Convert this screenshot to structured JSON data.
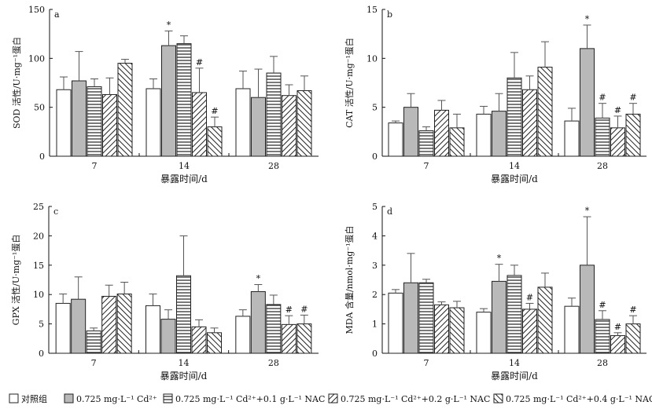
{
  "chart_data": [
    {
      "type": "bar",
      "panel_label": "a",
      "ylabel": "SOD 活性/U·mg⁻¹蛋白",
      "xlabel": "暴露时间/d",
      "ylim": [
        0,
        150
      ],
      "yticks": [
        0,
        50,
        100,
        150
      ],
      "categories": [
        "7",
        "14",
        "28"
      ],
      "series": [
        {
          "values": [
            68,
            69,
            69
          ],
          "errors": [
            13,
            10,
            18
          ],
          "marks": [
            "",
            "",
            ""
          ]
        },
        {
          "values": [
            77,
            113,
            60
          ],
          "errors": [
            30,
            15,
            29
          ],
          "marks": [
            "",
            "*",
            ""
          ]
        },
        {
          "values": [
            71,
            115,
            85
          ],
          "errors": [
            8,
            8,
            17
          ],
          "marks": [
            "",
            "",
            ""
          ]
        },
        {
          "values": [
            63,
            65,
            62
          ],
          "errors": [
            17,
            25,
            11
          ],
          "marks": [
            "",
            "#",
            ""
          ]
        },
        {
          "values": [
            95,
            30,
            67
          ],
          "errors": [
            4,
            10,
            15
          ],
          "marks": [
            "",
            "#",
            ""
          ]
        }
      ]
    },
    {
      "type": "bar",
      "panel_label": "b",
      "ylabel": "CAT 活性/U·mg⁻¹蛋白",
      "xlabel": "暴露时间/d",
      "ylim": [
        0,
        15
      ],
      "yticks": [
        0,
        5,
        10,
        15
      ],
      "categories": [
        "7",
        "14",
        "28"
      ],
      "series": [
        {
          "values": [
            3.4,
            4.3,
            3.6
          ],
          "errors": [
            0.2,
            0.8,
            1.3
          ],
          "marks": [
            "",
            "",
            ""
          ]
        },
        {
          "values": [
            5.0,
            4.6,
            11.0
          ],
          "errors": [
            1.4,
            1.8,
            2.4
          ],
          "marks": [
            "",
            "",
            "*"
          ]
        },
        {
          "values": [
            2.6,
            8.0,
            3.9
          ],
          "errors": [
            0.4,
            2.6,
            1.5
          ],
          "marks": [
            "",
            "",
            "#"
          ]
        },
        {
          "values": [
            4.7,
            6.8,
            2.9
          ],
          "errors": [
            1.0,
            1.4,
            1.2
          ],
          "marks": [
            "",
            "",
            "#"
          ]
        },
        {
          "values": [
            2.9,
            9.1,
            4.3
          ],
          "errors": [
            1.4,
            2.6,
            1.1
          ],
          "marks": [
            "",
            "",
            "#"
          ]
        }
      ]
    },
    {
      "type": "bar",
      "panel_label": "c",
      "ylabel": "GPX 活性/U·mg⁻¹蛋白",
      "xlabel": "暴露时间/d",
      "ylim": [
        0,
        25
      ],
      "yticks": [
        0,
        5,
        10,
        15,
        20,
        25
      ],
      "categories": [
        "7",
        "14",
        "28"
      ],
      "series": [
        {
          "values": [
            8.5,
            8.1,
            6.3
          ],
          "errors": [
            1.6,
            2.0,
            1.1
          ],
          "marks": [
            "",
            "",
            ""
          ]
        },
        {
          "values": [
            9.2,
            5.8,
            10.5
          ],
          "errors": [
            3.8,
            1.6,
            1.2
          ],
          "marks": [
            "",
            "",
            "*"
          ]
        },
        {
          "values": [
            3.8,
            13.2,
            8.3
          ],
          "errors": [
            0.5,
            6.8,
            1.6
          ],
          "marks": [
            "",
            "",
            ""
          ]
        },
        {
          "values": [
            9.7,
            4.5,
            4.9
          ],
          "errors": [
            1.9,
            1.2,
            1.5
          ],
          "marks": [
            "",
            "",
            "#"
          ]
        },
        {
          "values": [
            10.1,
            3.5,
            5.0
          ],
          "errors": [
            2.0,
            0.8,
            1.5
          ],
          "marks": [
            "",
            "",
            "#"
          ]
        }
      ]
    },
    {
      "type": "bar",
      "panel_label": "d",
      "ylabel": "MDA 含量/nmol·mg⁻¹蛋白",
      "xlabel": "暴露时间/d",
      "ylim": [
        0,
        5
      ],
      "yticks": [
        0,
        1,
        2,
        3,
        4,
        5
      ],
      "categories": [
        "7",
        "14",
        "28"
      ],
      "series": [
        {
          "values": [
            2.05,
            1.4,
            1.6
          ],
          "errors": [
            0.12,
            0.12,
            0.28
          ],
          "marks": [
            "",
            "",
            ""
          ]
        },
        {
          "values": [
            2.4,
            2.45,
            3.0
          ],
          "errors": [
            1.0,
            0.58,
            1.65
          ],
          "marks": [
            "",
            "*",
            "*"
          ]
        },
        {
          "values": [
            2.4,
            2.65,
            1.15
          ],
          "errors": [
            0.12,
            0.35,
            0.3
          ],
          "marks": [
            "",
            "",
            "#"
          ]
        },
        {
          "values": [
            1.65,
            1.5,
            0.6
          ],
          "errors": [
            0.1,
            0.2,
            0.1
          ],
          "marks": [
            "",
            "#",
            "#"
          ]
        },
        {
          "values": [
            1.55,
            2.25,
            1.0
          ],
          "errors": [
            0.22,
            0.48,
            0.28
          ],
          "marks": [
            "",
            "",
            "#"
          ]
        }
      ]
    }
  ],
  "legend": [
    "对照组",
    "0.725 mg·L⁻¹ Cd²⁺",
    "0.725 mg·L⁻¹ Cd²⁺+0.1 g·L⁻¹ NAC",
    "0.725 mg·L⁻¹ Cd²⁺+0.2 g·L⁻¹ NAC",
    "0.725 mg·L⁻¹ Cd²⁺+0.4 g·L⁻¹ NAC"
  ]
}
